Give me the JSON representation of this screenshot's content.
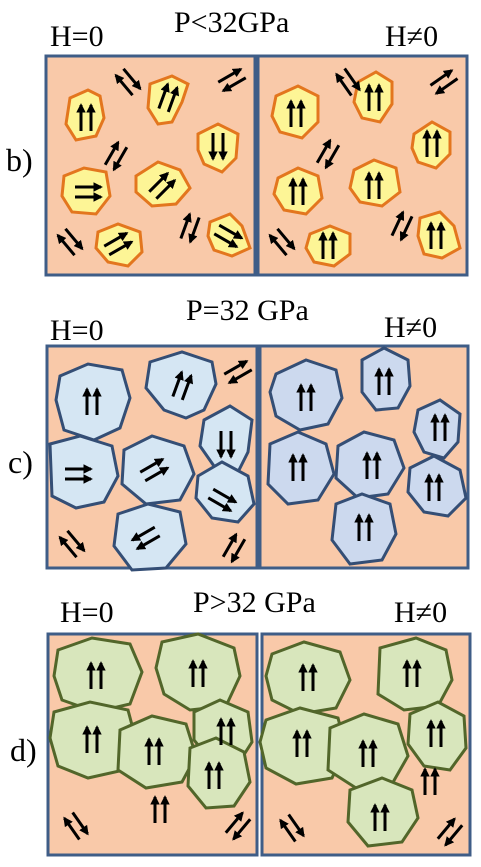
{
  "colors": {
    "background": "#f9c9a9",
    "frame": "#3f5d87",
    "b_grain_fill": "#fdf596",
    "b_grain_edge": "#e3761e",
    "c_grain_fill": "#d5e6f3",
    "c_grain_edge": "#344e75",
    "c_grain_fill_aligned": "#ccd9ee",
    "d_grain_fill": "#d8e6bc",
    "d_grain_edge": "#52662a",
    "arrow": "#000000"
  },
  "panels": [
    {
      "id": "b",
      "label": "b)",
      "title": "P<32GPa",
      "left_field": "H=0",
      "right_field": "H≠0"
    },
    {
      "id": "c",
      "label": "c)",
      "title": "P=32 GPa",
      "left_field": "H=0",
      "right_field": "H≠0"
    },
    {
      "id": "d",
      "label": "d)",
      "title": "P>32 GPa",
      "left_field": "H=0",
      "right_field": "H≠0"
    }
  ]
}
